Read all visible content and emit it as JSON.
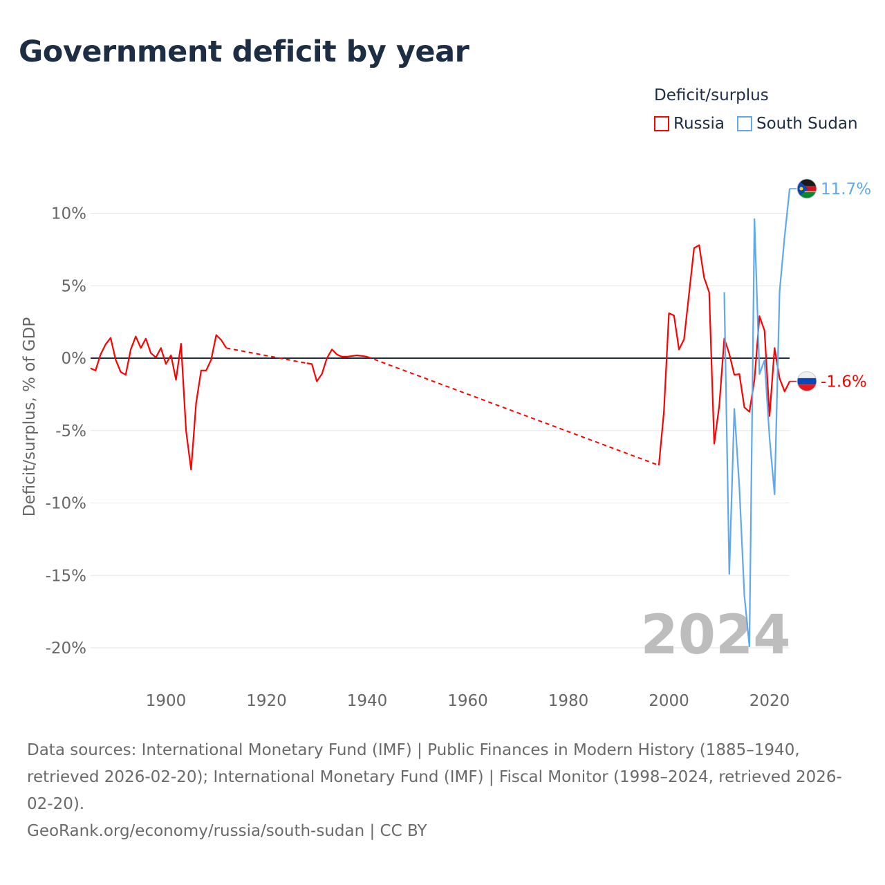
{
  "title": "Government deficit by year",
  "legend": {
    "title": "Deficit/surplus",
    "items": [
      {
        "name": "Russia",
        "color": "#ff0000"
      },
      {
        "name": "South Sudan",
        "color": "#5fa8ee"
      }
    ]
  },
  "year_watermark": "2024",
  "footer": {
    "sources": "Data sources: International Monetary Fund (IMF) | Public Finances in Modern History (1885–1940, retrieved 2026-02-20); International Monetary Fund (IMF) | Fiscal Monitor (1998–2024, retrieved 2026-02-20).",
    "credit": "GeoRank.org/economy/russia/south-sudan | CC BY"
  },
  "chart_data": {
    "type": "line",
    "title": "Government deficit by year",
    "xlabel": "",
    "ylabel": "Deficit/surplus, % of GDP",
    "xlim": [
      1885,
      2024
    ],
    "ylim": [
      -20,
      10
    ],
    "xticks": [
      1900,
      1920,
      1940,
      1960,
      1980,
      2000,
      2020
    ],
    "yticks": [
      {
        "v": 10,
        "label": "10%"
      },
      {
        "v": 5,
        "label": "5%"
      },
      {
        "v": 0,
        "label": "0%"
      },
      {
        "v": -5,
        "label": "-5%"
      },
      {
        "v": -10,
        "label": "-10%"
      },
      {
        "v": -15,
        "label": "-15%"
      },
      {
        "v": -20,
        "label": "-20%"
      }
    ],
    "grid": true,
    "legend_position": "top-right",
    "series": [
      {
        "name": "Russia",
        "color": "#ff0000",
        "end_label": "-1.6%",
        "points": [
          [
            1885,
            -0.7
          ],
          [
            1886,
            -0.85
          ],
          [
            1887,
            0.25
          ],
          [
            1888,
            0.95
          ],
          [
            1889,
            1.4
          ],
          [
            1890,
            -0.1
          ],
          [
            1891,
            -0.95
          ],
          [
            1892,
            -1.15
          ],
          [
            1893,
            0.6
          ],
          [
            1894,
            1.5
          ],
          [
            1895,
            0.7
          ],
          [
            1896,
            1.35
          ],
          [
            1897,
            0.35
          ],
          [
            1898,
            0.05
          ],
          [
            1899,
            0.7
          ],
          [
            1900,
            -0.4
          ],
          [
            1901,
            0.2
          ],
          [
            1902,
            -1.5
          ],
          [
            1903,
            1.0
          ],
          [
            1904,
            -5.0
          ],
          [
            1905,
            -7.7
          ],
          [
            1906,
            -3.1
          ],
          [
            1907,
            -0.85
          ],
          [
            1908,
            -0.85
          ],
          [
            1909,
            -0.1
          ],
          [
            1910,
            1.6
          ],
          [
            1911,
            1.25
          ],
          [
            1912,
            0.7
          ],
          [
            1928,
            -0.35
          ],
          [
            1929,
            -0.4
          ],
          [
            1930,
            -1.6
          ],
          [
            1931,
            -1.1
          ],
          [
            1932,
            0.0
          ],
          [
            1933,
            0.6
          ],
          [
            1934,
            0.25
          ],
          [
            1935,
            0.1
          ],
          [
            1936,
            0.1
          ],
          [
            1937,
            0.15
          ],
          [
            1938,
            0.2
          ],
          [
            1939,
            0.15
          ],
          [
            1940,
            0.1
          ],
          [
            1998,
            -7.4
          ],
          [
            1999,
            -3.7
          ],
          [
            2000,
            3.1
          ],
          [
            2001,
            2.95
          ],
          [
            2002,
            0.6
          ],
          [
            2003,
            1.3
          ],
          [
            2004,
            4.45
          ],
          [
            2005,
            7.6
          ],
          [
            2006,
            7.8
          ],
          [
            2007,
            5.55
          ],
          [
            2008,
            4.55
          ],
          [
            2009,
            -5.9
          ],
          [
            2010,
            -3.3
          ],
          [
            2011,
            1.35
          ],
          [
            2012,
            0.3
          ],
          [
            2013,
            -1.15
          ],
          [
            2014,
            -1.1
          ],
          [
            2015,
            -3.4
          ],
          [
            2016,
            -3.7
          ],
          [
            2017,
            -1.5
          ],
          [
            2018,
            2.9
          ],
          [
            2019,
            1.9
          ],
          [
            2020,
            -4.0
          ],
          [
            2021,
            0.7
          ],
          [
            2022,
            -1.4
          ],
          [
            2023,
            -2.3
          ],
          [
            2024,
            -1.6
          ]
        ]
      },
      {
        "name": "South Sudan",
        "color": "#5fa8ee",
        "end_label": "11.7%",
        "points": [
          [
            2011,
            4.55
          ],
          [
            2012,
            -14.9
          ],
          [
            2013,
            -3.5
          ],
          [
            2014,
            -8.9
          ],
          [
            2015,
            -16.4
          ],
          [
            2016,
            -19.9
          ],
          [
            2017,
            9.6
          ],
          [
            2018,
            -1.1
          ],
          [
            2019,
            -0.15
          ],
          [
            2020,
            -5.5
          ],
          [
            2021,
            -9.4
          ],
          [
            2022,
            4.6
          ],
          [
            2023,
            8.4
          ],
          [
            2024,
            11.7
          ]
        ]
      }
    ]
  }
}
